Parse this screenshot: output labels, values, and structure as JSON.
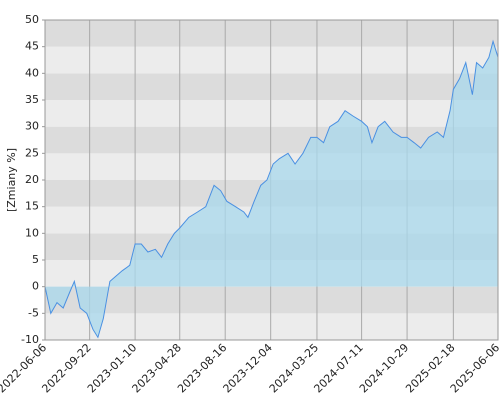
{
  "chart_data": {
    "type": "area",
    "y_label": "[Zmiany %]",
    "x": [
      "2022-06-06",
      "2022-06-20",
      "2022-07-05",
      "2022-07-20",
      "2022-08-05",
      "2022-08-16",
      "2022-08-30",
      "2022-09-15",
      "2022-09-30",
      "2022-10-12",
      "2022-10-25",
      "2022-11-10",
      "2022-11-25",
      "2022-12-10",
      "2022-12-28",
      "2023-01-10",
      "2023-01-25",
      "2023-02-10",
      "2023-02-28",
      "2023-03-15",
      "2023-03-30",
      "2023-04-15",
      "2023-04-28",
      "2023-05-20",
      "2023-06-10",
      "2023-06-30",
      "2023-07-20",
      "2023-08-05",
      "2023-08-20",
      "2023-09-10",
      "2023-09-30",
      "2023-10-10",
      "2023-10-25",
      "2023-11-10",
      "2023-11-25",
      "2023-12-10",
      "2023-12-25",
      "2024-01-15",
      "2024-02-01",
      "2024-02-20",
      "2024-03-10",
      "2024-03-25",
      "2024-04-10",
      "2024-04-25",
      "2024-05-15",
      "2024-06-01",
      "2024-06-20",
      "2024-07-11",
      "2024-07-25",
      "2024-08-05",
      "2024-08-20",
      "2024-09-05",
      "2024-09-25",
      "2024-10-15",
      "2024-10-29",
      "2024-11-15",
      "2024-12-01",
      "2024-12-20",
      "2025-01-10",
      "2025-01-25",
      "2025-02-10",
      "2025-02-18",
      "2025-03-05",
      "2025-03-20",
      "2025-04-05",
      "2025-04-15",
      "2025-04-30",
      "2025-05-15",
      "2025-05-25",
      "2025-06-06"
    ],
    "values": [
      0,
      -5,
      -3,
      -4,
      -1,
      1,
      -4,
      -5,
      -8,
      -9.5,
      -6,
      1,
      2,
      3,
      4,
      8,
      8,
      6.5,
      7,
      5.5,
      8,
      10,
      11,
      13,
      14,
      15,
      19,
      18,
      16,
      15,
      14,
      13,
      16,
      19,
      20,
      23,
      24,
      25,
      23,
      25,
      28,
      28,
      27,
      30,
      31,
      33,
      32,
      31,
      30,
      27,
      30,
      31,
      29,
      28,
      28,
      27,
      26,
      28,
      29,
      28,
      33,
      37,
      39,
      42,
      36,
      42,
      41,
      43,
      46,
      43
    ],
    "color": "#4a90e2",
    "fill": "#a8d8ec",
    "xlim": [
      "2022-06-06",
      "2025-06-06"
    ],
    "xticks": [
      "2022-06-06",
      "2022-09-22",
      "2023-01-10",
      "2023-04-28",
      "2023-08-16",
      "2023-12-04",
      "2024-03-25",
      "2024-07-11",
      "2024-10-29",
      "2025-02-18",
      "2025-06-06"
    ],
    "ylim": [
      -10,
      50
    ],
    "yticks": [
      -10,
      -5,
      0,
      5,
      10,
      15,
      20,
      25,
      30,
      35,
      40,
      45,
      50
    ],
    "grid": true
  }
}
